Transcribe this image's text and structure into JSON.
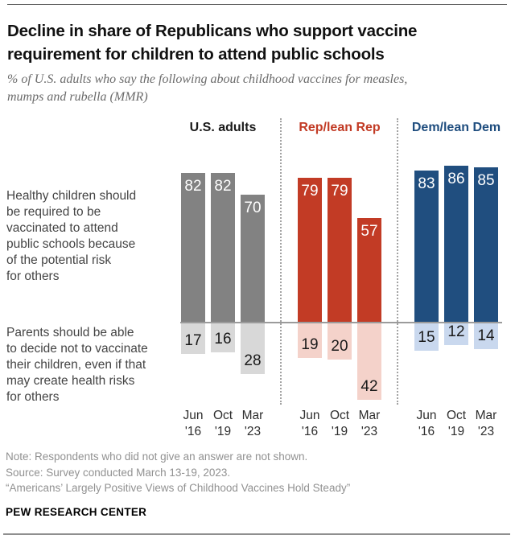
{
  "header": {
    "title": "Decline in share of Republicans who support vaccine\nrequirement for children to attend public schools",
    "subtitle": "% of U.S. adults who say the following about childhood vaccines for measles,\nmumps and rubella (MMR)"
  },
  "chart_data": {
    "type": "bar",
    "orientation": "diverging-vertical",
    "value_unit": "%",
    "ylim": [
      0,
      100
    ],
    "grid": false,
    "categories": [
      "Jun '16",
      "Oct '19",
      "Mar '23"
    ],
    "row_labels": {
      "top": "Healthy children should\nbe required to be\nvaccinated to attend\npublic schools because\nof the potential risk\nfor others",
      "bottom": "Parents should be able\nto decide not to vaccinate\ntheir children, even if that\nmay create health risks\nfor others"
    },
    "groups": [
      {
        "label": "U.S. adults",
        "header_color": "#1a1a1a",
        "bar_color": "#828282",
        "light_bar_color": "#d8d8d8",
        "top_values": [
          82,
          82,
          70
        ],
        "bottom_values": [
          17,
          16,
          28
        ]
      },
      {
        "label": "Rep/lean Rep",
        "header_color": "#c23b25",
        "bar_color": "#c23b25",
        "light_bar_color": "#f4d2ca",
        "top_values": [
          79,
          79,
          57
        ],
        "bottom_values": [
          19,
          20,
          42
        ]
      },
      {
        "label": "Dem/lean Dem",
        "header_color": "#204e7f",
        "bar_color": "#204e7f",
        "light_bar_color": "#c9d8ee",
        "top_values": [
          83,
          86,
          85
        ],
        "bottom_values": [
          15,
          12,
          14
        ]
      }
    ]
  },
  "notes": {
    "note": "Note: Respondents who did not give an answer are not shown.",
    "source": "Source: Survey conducted March 13-19, 2023.",
    "report": "“Americans’ Largely Positive Views of Childhood Vaccines Hold Steady”"
  },
  "footer": {
    "brand": "PEW RESEARCH CENTER"
  }
}
